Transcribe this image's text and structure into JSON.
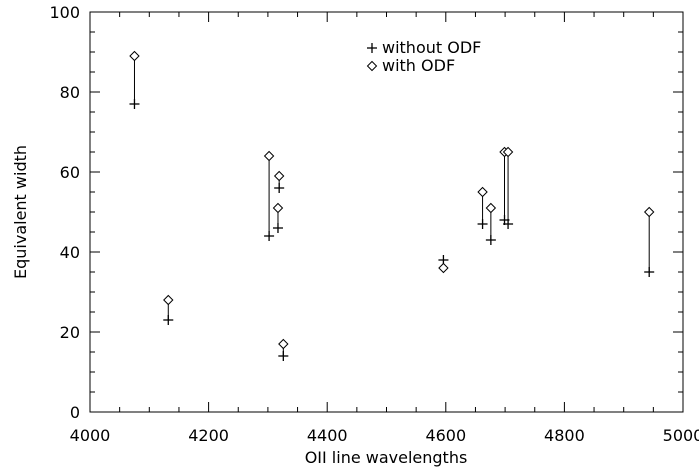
{
  "chart_data": {
    "type": "scatter",
    "title": "",
    "xlabel": "OII line wavelengths",
    "ylabel": "Equivalent width",
    "xlim": [
      4000,
      5000
    ],
    "ylim": [
      0,
      100
    ],
    "xticks": [
      4000,
      4200,
      4400,
      4600,
      4800,
      5000
    ],
    "yticks": [
      0,
      20,
      40,
      60,
      80,
      100
    ],
    "legend_position": "top-center",
    "grid": false,
    "series": [
      {
        "name": "without ODF",
        "marker": "plus",
        "points": [
          {
            "x": 4075,
            "y": 77
          },
          {
            "x": 4132,
            "y": 23
          },
          {
            "x": 4302,
            "y": 44
          },
          {
            "x": 4317,
            "y": 46
          },
          {
            "x": 4319,
            "y": 56
          },
          {
            "x": 4326,
            "y": 14
          },
          {
            "x": 4596,
            "y": 38
          },
          {
            "x": 4662,
            "y": 47
          },
          {
            "x": 4676,
            "y": 43
          },
          {
            "x": 4699,
            "y": 48
          },
          {
            "x": 4705,
            "y": 47
          },
          {
            "x": 4943,
            "y": 35
          }
        ]
      },
      {
        "name": "with ODF",
        "marker": "diamond",
        "points": [
          {
            "x": 4075,
            "y": 89
          },
          {
            "x": 4132,
            "y": 28
          },
          {
            "x": 4302,
            "y": 64
          },
          {
            "x": 4317,
            "y": 51
          },
          {
            "x": 4319,
            "y": 59
          },
          {
            "x": 4326,
            "y": 17
          },
          {
            "x": 4596,
            "y": 36
          },
          {
            "x": 4662,
            "y": 55
          },
          {
            "x": 4676,
            "y": 51
          },
          {
            "x": 4699,
            "y": 65
          },
          {
            "x": 4705,
            "y": 65
          },
          {
            "x": 4943,
            "y": 50
          }
        ]
      }
    ]
  }
}
